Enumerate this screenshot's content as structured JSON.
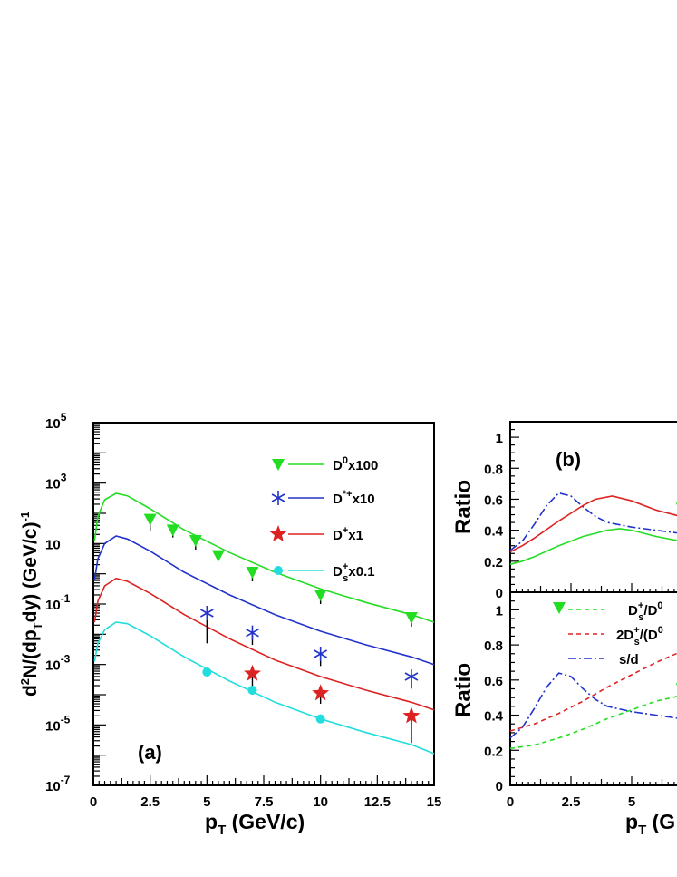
{
  "chart_data": [
    {
      "panel": "a",
      "type": "line",
      "label": "(a)",
      "xlabel": "p_T (GeV/c)",
      "ylabel": "d²N/(dp_T dy) (GeV/c)⁻¹",
      "xlim": [
        0,
        15
      ],
      "ylim_log10": [
        -7,
        5
      ],
      "yscale": "log",
      "x_ticks": [
        "0",
        "2.5",
        "5",
        "7.5",
        "10",
        "12.5",
        "15"
      ],
      "y_ticks": [
        {
          "base": "10",
          "exp": "5",
          "v": 5
        },
        {
          "base": "10",
          "exp": "3",
          "v": 3
        },
        {
          "base": "10",
          "exp": "",
          "v": 1
        },
        {
          "base": "10",
          "exp": "-1",
          "v": -1
        },
        {
          "base": "10",
          "exp": "-3",
          "v": -3
        },
        {
          "base": "10",
          "exp": "-5",
          "v": -5
        },
        {
          "base": "10",
          "exp": "-7",
          "v": -7
        }
      ],
      "series": [
        {
          "key": "d0",
          "label_main": "D",
          "label_sup": "0",
          "label_sub": "",
          "label_tail": "x100",
          "color": "#22dd22",
          "marker": "triangle-down",
          "curve_logy": [
            [
              0.05,
              1.1
            ],
            [
              0.2,
              1.9
            ],
            [
              0.5,
              2.45
            ],
            [
              1.0,
              2.66
            ],
            [
              1.5,
              2.58
            ],
            [
              2.5,
              2.15
            ],
            [
              4,
              1.45
            ],
            [
              6,
              0.7
            ],
            [
              8,
              0.05
            ],
            [
              10,
              -0.5
            ],
            [
              12,
              -0.95
            ],
            [
              14,
              -1.35
            ],
            [
              15,
              -1.6
            ]
          ],
          "points": [
            {
              "x": 2.5,
              "logy": 1.8,
              "elo": 0.4,
              "ehi": 0.1
            },
            {
              "x": 3.5,
              "logy": 1.45,
              "elo": 0.25,
              "ehi": 0.1
            },
            {
              "x": 4.5,
              "logy": 1.1,
              "elo": 0.3,
              "ehi": 0.1
            },
            {
              "x": 5.5,
              "logy": 0.6,
              "elo": 0.15,
              "ehi": 0.1
            },
            {
              "x": 7,
              "logy": 0.05,
              "elo": 0.3,
              "ehi": 0.1
            },
            {
              "x": 10,
              "logy": -0.7,
              "elo": 0.3,
              "ehi": 0.1
            },
            {
              "x": 14,
              "logy": -1.45,
              "elo": 0.3,
              "ehi": 0.15
            }
          ]
        },
        {
          "key": "dstar",
          "label_main": "D",
          "label_sup": "*+",
          "label_sub": "",
          "label_tail": "x10",
          "color": "#2233cc",
          "marker": "asterisk",
          "curve_logy": [
            [
              0.05,
              -0.2
            ],
            [
              0.2,
              0.5
            ],
            [
              0.5,
              1.0
            ],
            [
              1.0,
              1.25
            ],
            [
              1.5,
              1.15
            ],
            [
              2.5,
              0.75
            ],
            [
              4,
              0.05
            ],
            [
              6,
              -0.7
            ],
            [
              8,
              -1.35
            ],
            [
              10,
              -1.9
            ],
            [
              12,
              -2.35
            ],
            [
              14,
              -2.75
            ],
            [
              15,
              -3.0
            ]
          ],
          "points": [
            {
              "x": 5,
              "logy": -1.3,
              "elo": 1.0,
              "ehi": 0.1
            },
            {
              "x": 7,
              "logy": -1.95,
              "elo": 0.4,
              "ehi": 0.1
            },
            {
              "x": 10,
              "logy": -2.65,
              "elo": 0.4,
              "ehi": 0.1
            },
            {
              "x": 14,
              "logy": -3.4,
              "elo": 0.4,
              "ehi": 0.1
            }
          ]
        },
        {
          "key": "dplus",
          "label_main": "D",
          "label_sup": "+",
          "label_sub": "",
          "label_tail": "x1",
          "color": "#dd2222",
          "marker": "star",
          "curve_logy": [
            [
              0.05,
              -1.6
            ],
            [
              0.2,
              -0.9
            ],
            [
              0.5,
              -0.4
            ],
            [
              1.0,
              -0.15
            ],
            [
              1.5,
              -0.25
            ],
            [
              2.5,
              -0.65
            ],
            [
              4,
              -1.35
            ],
            [
              6,
              -2.15
            ],
            [
              8,
              -2.85
            ],
            [
              10,
              -3.4
            ],
            [
              12,
              -3.85
            ],
            [
              14,
              -4.25
            ],
            [
              15,
              -4.5
            ]
          ],
          "points": [
            {
              "x": 7,
              "logy": -3.3,
              "elo": 0.7,
              "ehi": 0.1
            },
            {
              "x": 10,
              "logy": -3.95,
              "elo": 0.35,
              "ehi": 0.1
            },
            {
              "x": 14,
              "logy": -4.7,
              "elo": 0.9,
              "ehi": 0.1
            }
          ]
        },
        {
          "key": "ds",
          "label_main": "D",
          "label_sup": "+",
          "label_sub": "s",
          "label_tail": "x0.1",
          "color": "#22dddd",
          "marker": "circle",
          "curve_logy": [
            [
              0.05,
              -2.9
            ],
            [
              0.2,
              -2.3
            ],
            [
              0.5,
              -1.85
            ],
            [
              1.0,
              -1.6
            ],
            [
              1.5,
              -1.65
            ],
            [
              2.5,
              -2.05
            ],
            [
              4,
              -2.75
            ],
            [
              6,
              -3.55
            ],
            [
              8,
              -4.25
            ],
            [
              10,
              -4.8
            ],
            [
              12,
              -5.25
            ],
            [
              14,
              -5.65
            ],
            [
              15,
              -5.95
            ]
          ],
          "points": [
            {
              "x": 5,
              "logy": -3.25,
              "elo": 0,
              "ehi": 0
            },
            {
              "x": 7,
              "logy": -3.85,
              "elo": 0,
              "ehi": 0
            },
            {
              "x": 10,
              "logy": -4.8,
              "elo": 0,
              "ehi": 0
            }
          ]
        }
      ]
    },
    {
      "panel": "b",
      "type": "line",
      "label": "(b)",
      "ylabel": "Ratio",
      "xlim": [
        0,
        7
      ],
      "ylim": [
        0,
        1.1
      ],
      "y_ticks": [
        "0",
        "0.2",
        "0.4",
        "0.6",
        "0.8",
        "1"
      ],
      "series": [
        {
          "color": "#2233cc",
          "dash": "dashdot",
          "points": [
            [
              0,
              0.27
            ],
            [
              0.5,
              0.33
            ],
            [
              1,
              0.44
            ],
            [
              1.5,
              0.56
            ],
            [
              2,
              0.64
            ],
            [
              2.5,
              0.62
            ],
            [
              3,
              0.55
            ],
            [
              3.5,
              0.49
            ],
            [
              4,
              0.45
            ],
            [
              5,
              0.42
            ],
            [
              6,
              0.4
            ],
            [
              7,
              0.38
            ]
          ]
        },
        {
          "color": "#dd2222",
          "dash": "solid",
          "points": [
            [
              0,
              0.26
            ],
            [
              0.5,
              0.3
            ],
            [
              1,
              0.35
            ],
            [
              2,
              0.46
            ],
            [
              3,
              0.56
            ],
            [
              3.5,
              0.6
            ],
            [
              4.2,
              0.62
            ],
            [
              5,
              0.59
            ],
            [
              6,
              0.53
            ],
            [
              7,
              0.49
            ]
          ]
        },
        {
          "color": "#22dd22",
          "dash": "solid",
          "points": [
            [
              0,
              0.18
            ],
            [
              0.5,
              0.2
            ],
            [
              1,
              0.23
            ],
            [
              2,
              0.3
            ],
            [
              3,
              0.36
            ],
            [
              4,
              0.4
            ],
            [
              4.5,
              0.41
            ],
            [
              5,
              0.4
            ],
            [
              6,
              0.36
            ],
            [
              7,
              0.33
            ]
          ]
        }
      ],
      "points": [
        {
          "x": 7,
          "y": 0.53,
          "elo": 0.5,
          "ehi": 0.33,
          "color": "#22dd22"
        }
      ]
    },
    {
      "panel": "c",
      "type": "line",
      "ylabel": "Ratio",
      "xlabel_partial": "p_T (G",
      "xlim": [
        0,
        7
      ],
      "ylim": [
        0,
        1.1
      ],
      "x_ticks": [
        "0",
        "2.5",
        "5"
      ],
      "y_ticks": [
        "0",
        "0.2",
        "0.4",
        "0.6",
        "0.8",
        "1"
      ],
      "legend": [
        {
          "label_main": "D",
          "label_sup": "+",
          "label_sub": "s",
          "label_tail": "/D",
          "label_sup2": "0",
          "color": "#22dd22",
          "dash": "dashed",
          "marker": "triangle-down"
        },
        {
          "label_main": "2D",
          "label_sup": "+",
          "label_sub": "s",
          "label_tail": "/(D",
          "label_sup2": "0",
          "color": "#dd2222",
          "dash": "dashed",
          "marker": ""
        },
        {
          "label_main": "s/d",
          "label_sup": "",
          "label_sub": "",
          "label_tail": "",
          "label_sup2": "",
          "color": "#2233cc",
          "dash": "dashdot",
          "marker": ""
        }
      ],
      "series": [
        {
          "color": "#2233cc",
          "dash": "dashdot",
          "points": [
            [
              0,
              0.27
            ],
            [
              0.5,
              0.33
            ],
            [
              1,
              0.44
            ],
            [
              1.5,
              0.56
            ],
            [
              2,
              0.64
            ],
            [
              2.5,
              0.62
            ],
            [
              3,
              0.55
            ],
            [
              3.5,
              0.49
            ],
            [
              4,
              0.45
            ],
            [
              5,
              0.42
            ],
            [
              6,
              0.4
            ],
            [
              7,
              0.38
            ]
          ]
        },
        {
          "color": "#dd2222",
          "dash": "dashed",
          "points": [
            [
              0,
              0.31
            ],
            [
              1,
              0.35
            ],
            [
              2,
              0.41
            ],
            [
              3,
              0.48
            ],
            [
              4,
              0.56
            ],
            [
              5,
              0.63
            ],
            [
              6,
              0.7
            ],
            [
              7,
              0.76
            ]
          ]
        },
        {
          "color": "#22dd22",
          "dash": "dashed",
          "points": [
            [
              0,
              0.21
            ],
            [
              1,
              0.23
            ],
            [
              2,
              0.27
            ],
            [
              3,
              0.32
            ],
            [
              4,
              0.38
            ],
            [
              5,
              0.43
            ],
            [
              6,
              0.48
            ],
            [
              7,
              0.51
            ]
          ]
        }
      ],
      "points": [
        {
          "x": 7,
          "y": 0.54,
          "elo": 0.33,
          "ehi": 0.33,
          "color": "#22dd22"
        }
      ]
    }
  ]
}
